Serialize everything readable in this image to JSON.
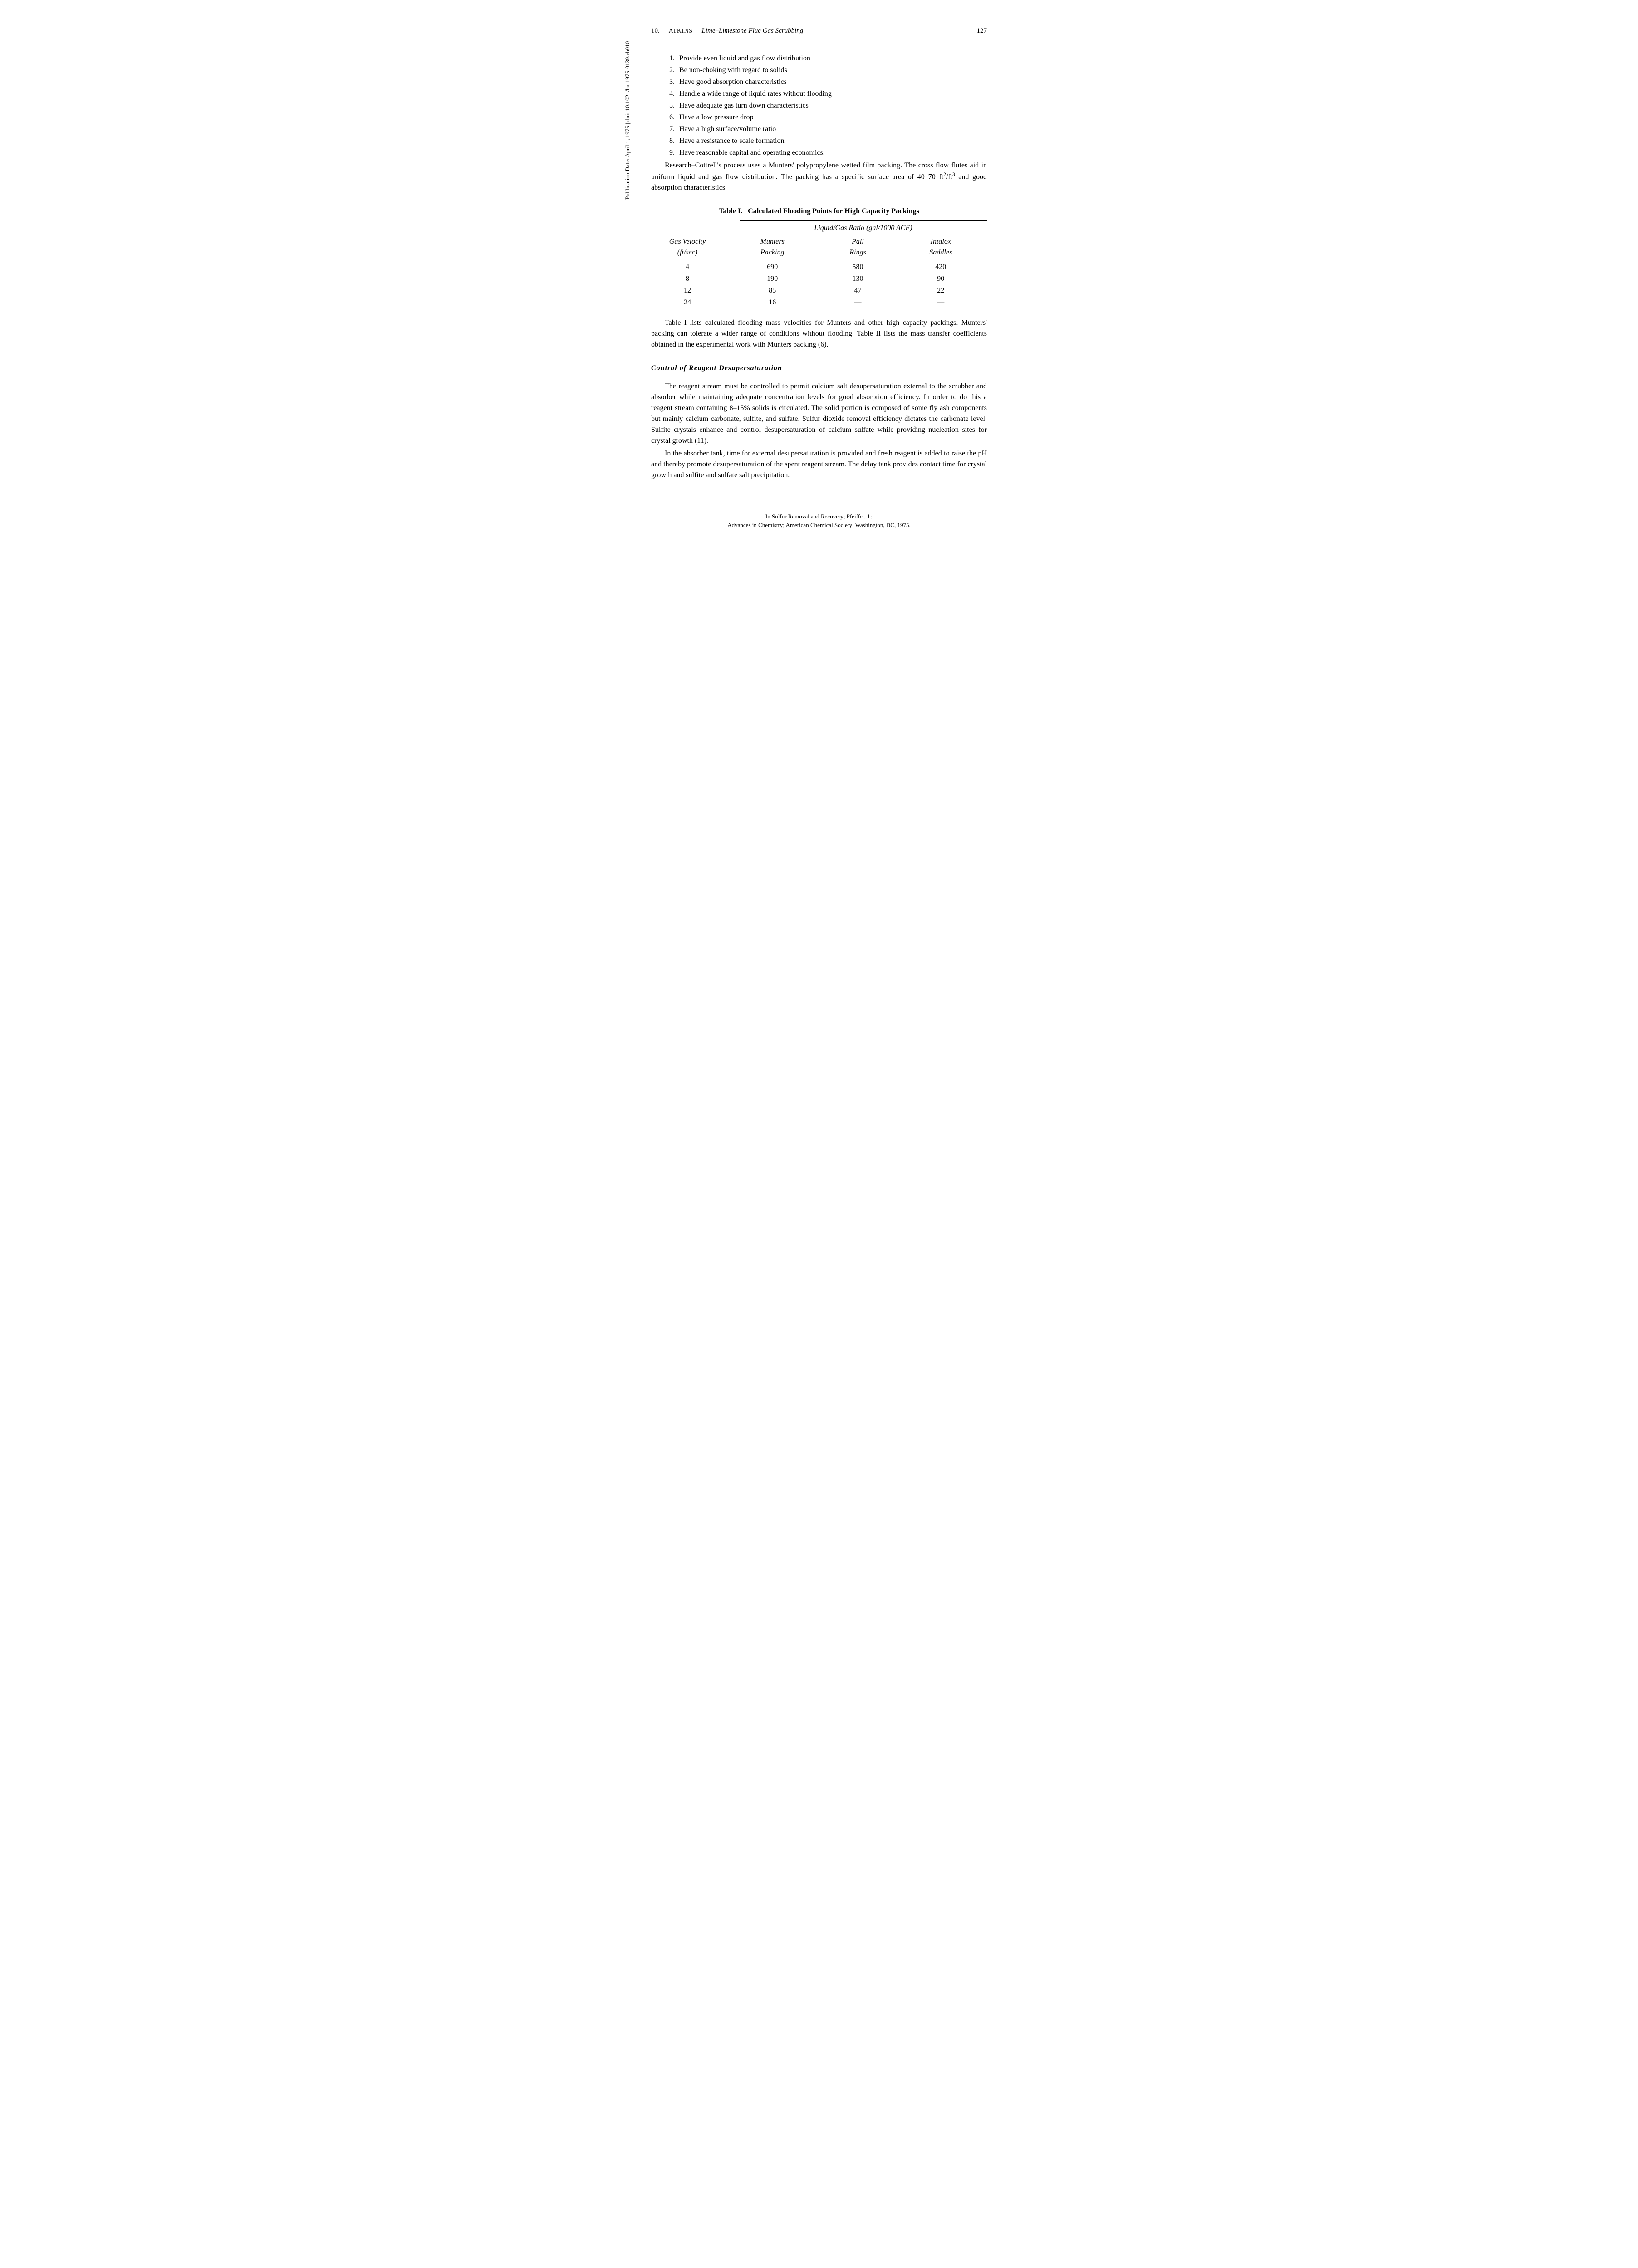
{
  "header": {
    "chapter_num": "10.",
    "author": "ATKINS",
    "title": "Lime–Limestone Flue Gas Scrubbing",
    "page": "127"
  },
  "sidebar": "Publication Date: April 1, 1975 | doi: 10.1021/ba-1975-0139.ch010",
  "list": [
    "Provide even liquid and gas flow distribution",
    "Be non-choking with regard to solids",
    "Have good absorption characteristics",
    "Handle a wide range of liquid rates without flooding",
    "Have adequate gas turn down characteristics",
    "Have a low pressure drop",
    "Have a high surface/volume ratio",
    "Have a resistance to scale formation",
    "Have reasonable capital and operating economics."
  ],
  "para1_a": "Research–Cottrell's process uses a Munters' polypropylene wetted film packing. The cross flow flutes aid in uniform liquid and gas flow distribution. The packing has a specific surface area of 40–70 ft",
  "para1_b": "/ft",
  "para1_c": " and good absorption characteristics.",
  "sup2": "2",
  "sup3": "3",
  "table": {
    "title": "Table I.   Calculated Flooding Points for High Capacity Packings",
    "supheader": "Liquid/Gas Ratio (gal/1000 ACF)",
    "cols": [
      {
        "line1": "Gas Velocity",
        "line2": "(ft/sec)"
      },
      {
        "line1": "Munters",
        "line2": "Packing"
      },
      {
        "line1": "Pall",
        "line2": "Rings"
      },
      {
        "line1": "Intalox",
        "line2": "Saddles"
      }
    ],
    "rows": [
      [
        "4",
        "690",
        "580",
        "420"
      ],
      [
        "8",
        "190",
        "130",
        "90"
      ],
      [
        "12",
        "85",
        "47",
        "22"
      ],
      [
        "24",
        "16",
        "—",
        "—"
      ]
    ]
  },
  "para2": "Table I lists calculated flooding mass velocities for Munters and other high capacity packings. Munters' packing can tolerate a wider range of conditions without flooding. Table II lists the mass transfer coefficients obtained in the experimental work with Munters packing (6).",
  "section_heading": "Control of Reagent Desupersaturation",
  "para3": "The reagent stream must be controlled to permit calcium salt desupersaturation external to the scrubber and absorber while maintaining adequate concentration levels for good absorption efficiency. In order to do this a reagent stream containing 8–15% solids is circulated. The solid portion is composed of some fly ash components but mainly calcium carbonate, sulfite, and sulfate. Sulfur dioxide removal efficiency dictates the carbonate level. Sulfite crystals enhance and control desupersaturation of calcium sulfate while providing nucleation sites for crystal growth (11).",
  "para4": "In the absorber tank, time for external desupersaturation is provided and fresh reagent is added to raise the pH and thereby promote desupersaturation of the spent reagent stream. The delay tank provides contact time for crystal growth and sulfite and sulfate salt precipitation.",
  "footer": {
    "line1": "In Sulfur Removal and Recovery; Pfeiffer, J.;",
    "line2": "Advances in Chemistry; American Chemical Society: Washington, DC, 1975."
  }
}
